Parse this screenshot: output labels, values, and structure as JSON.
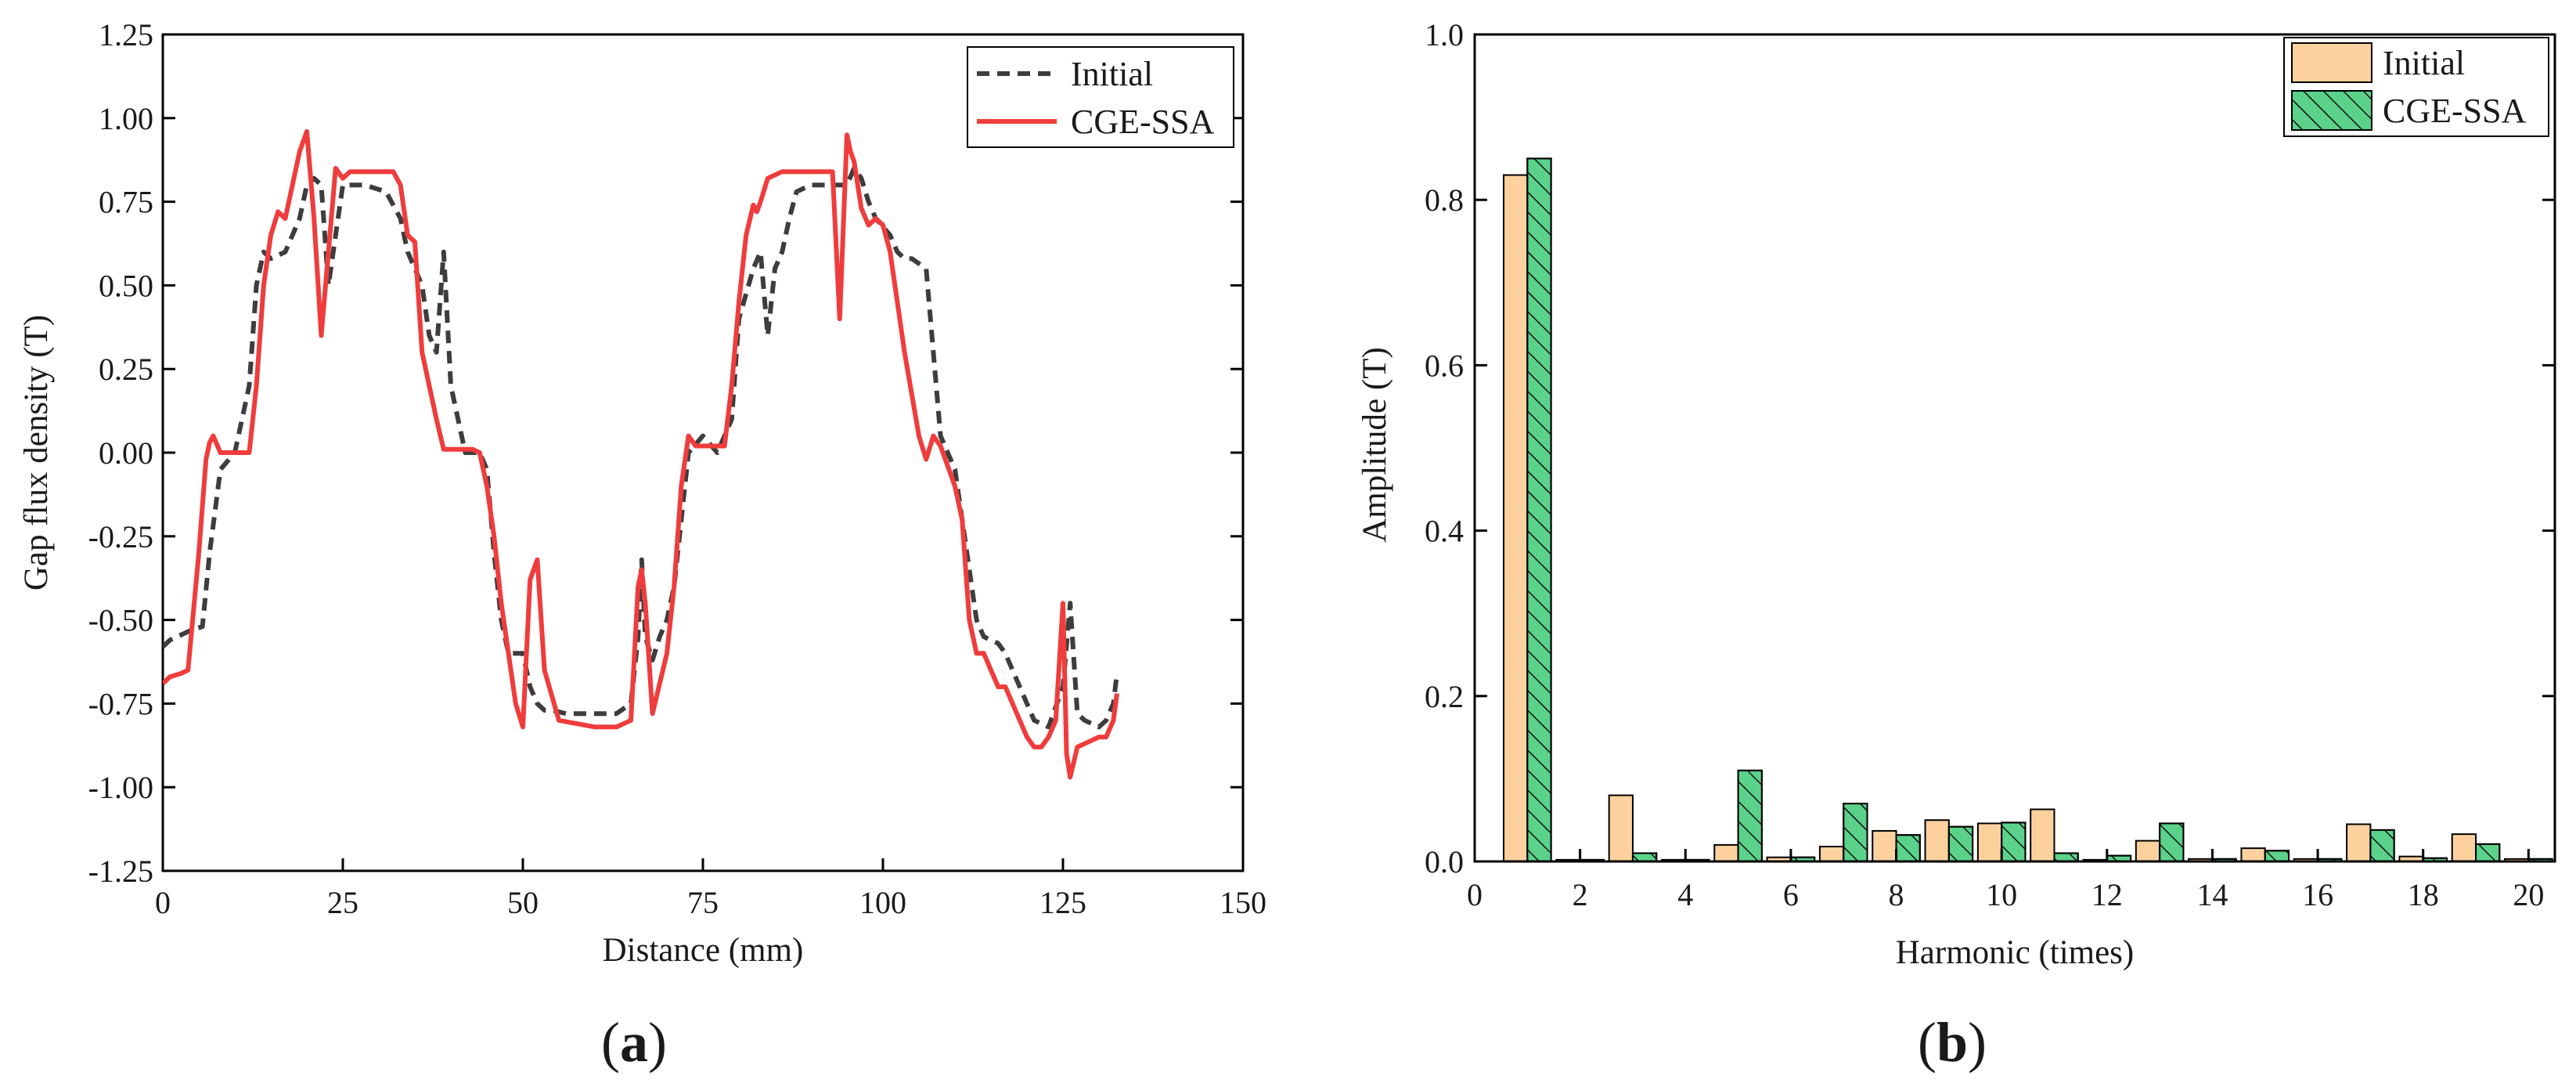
{
  "figure": {
    "panel_a_label": {
      "open": "(",
      "letter": "a",
      "close": ")"
    },
    "panel_b_label": {
      "open": "(",
      "letter": "b",
      "close": ")"
    }
  },
  "colors": {
    "initial_line": "#3d3d3d",
    "cge_line": "#f03c3c",
    "initial_bar": "#fdd19d",
    "cge_bar": "#5bd28a",
    "axis": "#000000"
  },
  "chart_data": [
    {
      "type": "line",
      "xlabel": "Distance (mm)",
      "ylabel": "Gap flux density (T)",
      "xlim": [
        0,
        150
      ],
      "ylim": [
        -1.25,
        1.25
      ],
      "xticks": [
        0,
        25,
        50,
        75,
        100,
        125,
        150
      ],
      "xtick_labels": [
        "0",
        "25",
        "50",
        "75",
        "100",
        "125",
        "150"
      ],
      "yticks": [
        -1.25,
        -1.0,
        -0.75,
        -0.5,
        -0.25,
        0,
        0.25,
        0.5,
        0.75,
        1.0,
        1.25
      ],
      "ytick_labels": [
        "-1.25",
        "-1.00",
        "-0.75",
        "-0.50",
        "-0.25",
        "0.00",
        "0.25",
        "0.50",
        "0.75",
        "1.00",
        "1.25"
      ],
      "legend_position": "top-right",
      "series": [
        {
          "name": "Initial",
          "style": "dashed",
          "x": [
            0,
            1,
            2,
            4,
            5.5,
            6.5,
            8,
            10,
            12,
            13,
            14,
            15,
            17,
            19,
            20,
            21,
            22,
            23,
            25,
            28,
            31,
            33,
            34,
            35,
            36,
            37,
            38,
            38.5,
            39,
            40,
            42,
            44,
            45,
            46,
            47,
            48,
            50,
            51,
            52,
            53,
            54,
            56,
            60,
            63,
            65,
            66,
            66.5,
            67,
            68,
            69,
            70,
            71,
            72,
            73,
            75,
            77,
            79,
            80,
            82,
            83,
            84,
            85,
            86,
            87,
            88,
            90,
            93,
            95,
            96,
            97,
            98,
            99,
            101,
            102,
            103,
            104,
            106,
            107,
            108,
            109,
            110,
            111,
            112,
            113,
            114,
            116,
            117,
            118,
            119,
            120,
            121,
            123,
            125,
            126,
            127,
            128,
            130,
            131,
            132,
            132.5
          ],
          "y": [
            -0.58,
            -0.56,
            -0.55,
            -0.53,
            -0.52,
            -0.3,
            -0.05,
            0.0,
            0.2,
            0.5,
            0.6,
            0.58,
            0.6,
            0.7,
            0.8,
            0.82,
            0.8,
            0.5,
            0.8,
            0.8,
            0.78,
            0.7,
            0.6,
            0.55,
            0.5,
            0.35,
            0.3,
            0.45,
            0.6,
            0.2,
            0.0,
            0.0,
            -0.05,
            -0.3,
            -0.5,
            -0.6,
            -0.6,
            -0.7,
            -0.75,
            -0.77,
            -0.77,
            -0.78,
            -0.78,
            -0.78,
            -0.75,
            -0.55,
            -0.32,
            -0.55,
            -0.62,
            -0.55,
            -0.5,
            -0.4,
            -0.2,
            0.0,
            0.05,
            0.0,
            0.1,
            0.4,
            0.55,
            0.6,
            0.35,
            0.55,
            0.6,
            0.7,
            0.78,
            0.8,
            0.8,
            0.8,
            0.85,
            0.82,
            0.75,
            0.7,
            0.65,
            0.6,
            0.58,
            0.58,
            0.55,
            0.3,
            0.05,
            0.0,
            -0.05,
            -0.2,
            -0.35,
            -0.5,
            -0.55,
            -0.57,
            -0.6,
            -0.65,
            -0.7,
            -0.75,
            -0.8,
            -0.82,
            -0.7,
            -0.45,
            -0.78,
            -0.8,
            -0.82,
            -0.8,
            -0.75,
            -0.66
          ]
        },
        {
          "name": "CGE-SSA",
          "style": "solid",
          "x": [
            0,
            1,
            2.5,
            3.5,
            5,
            6,
            6.5,
            7,
            8,
            9,
            10,
            12,
            13,
            14,
            15,
            16,
            17,
            18,
            19,
            20,
            21,
            22,
            23,
            24,
            25,
            26,
            28,
            30,
            32,
            33,
            34,
            35,
            36,
            37,
            38,
            39,
            40,
            42,
            43,
            44,
            45,
            46,
            47,
            48,
            49,
            50,
            51,
            52,
            53,
            55,
            60,
            63,
            65,
            66,
            66.5,
            67,
            68,
            70,
            71,
            72,
            73,
            74,
            75,
            78,
            79,
            80,
            81,
            82,
            82.5,
            83,
            84,
            86,
            88,
            90,
            92,
            93,
            94,
            95,
            95.5,
            96,
            97,
            98,
            99,
            100,
            101,
            103,
            105,
            106,
            107,
            108,
            110,
            111,
            112,
            113,
            114,
            115,
            116,
            117,
            118,
            119,
            120,
            121,
            122,
            123,
            124,
            125,
            125.5,
            126,
            127,
            128,
            130,
            131,
            132,
            132.5
          ],
          "y": [
            -0.69,
            -0.67,
            -0.66,
            -0.65,
            -0.3,
            -0.02,
            0.03,
            0.05,
            0.0,
            0.0,
            0.0,
            0.0,
            0.2,
            0.5,
            0.65,
            0.72,
            0.7,
            0.8,
            0.9,
            0.96,
            0.7,
            0.35,
            0.6,
            0.85,
            0.82,
            0.84,
            0.84,
            0.84,
            0.84,
            0.8,
            0.65,
            0.63,
            0.3,
            0.2,
            0.1,
            0.01,
            0.01,
            0.01,
            0.01,
            0.0,
            -0.1,
            -0.25,
            -0.45,
            -0.6,
            -0.75,
            -0.82,
            -0.38,
            -0.32,
            -0.65,
            -0.8,
            -0.82,
            -0.82,
            -0.8,
            -0.4,
            -0.35,
            -0.45,
            -0.78,
            -0.6,
            -0.4,
            -0.1,
            0.05,
            0.02,
            0.02,
            0.02,
            0.2,
            0.45,
            0.65,
            0.74,
            0.72,
            0.75,
            0.82,
            0.84,
            0.84,
            0.84,
            0.84,
            0.84,
            0.4,
            0.95,
            0.9,
            0.87,
            0.73,
            0.68,
            0.7,
            0.68,
            0.6,
            0.3,
            0.05,
            -0.02,
            0.05,
            0.02,
            -0.1,
            -0.2,
            -0.5,
            -0.6,
            -0.6,
            -0.65,
            -0.7,
            -0.7,
            -0.75,
            -0.8,
            -0.85,
            -0.88,
            -0.88,
            -0.85,
            -0.8,
            -0.45,
            -0.9,
            -0.97,
            -0.88,
            -0.87,
            -0.85,
            -0.85,
            -0.8,
            -0.72
          ]
        }
      ]
    },
    {
      "type": "bar",
      "xlabel": "Harmonic (times)",
      "ylabel": "Amplitude (T)",
      "xlim": [
        0,
        20.5
      ],
      "ylim": [
        0,
        1.0
      ],
      "xticks": [
        0,
        2,
        4,
        6,
        8,
        10,
        12,
        14,
        16,
        18,
        20
      ],
      "xtick_labels": [
        "0",
        "2",
        "4",
        "6",
        "8",
        "10",
        "12",
        "14",
        "16",
        "18",
        "20"
      ],
      "yticks": [
        0,
        0.2,
        0.4,
        0.6,
        0.8,
        1.0
      ],
      "ytick_labels": [
        "0.0",
        "0.2",
        "0.4",
        "0.6",
        "0.8",
        "1.0"
      ],
      "legend_position": "top-right",
      "categories": [
        1,
        2,
        3,
        4,
        5,
        6,
        7,
        8,
        9,
        10,
        11,
        12,
        13,
        14,
        15,
        16,
        17,
        18,
        19,
        20
      ],
      "series": [
        {
          "name": "Initial",
          "pattern": "solid",
          "values": [
            0.83,
            0.002,
            0.08,
            0.002,
            0.02,
            0.005,
            0.018,
            0.037,
            0.05,
            0.046,
            0.063,
            0.002,
            0.025,
            0.003,
            0.016,
            0.003,
            0.045,
            0.006,
            0.033,
            0.003
          ]
        },
        {
          "name": "CGE-SSA",
          "pattern": "hatched",
          "values": [
            0.85,
            0.002,
            0.01,
            0.002,
            0.11,
            0.005,
            0.07,
            0.032,
            0.042,
            0.047,
            0.01,
            0.007,
            0.046,
            0.003,
            0.013,
            0.003,
            0.038,
            0.004,
            0.021,
            0.003
          ]
        }
      ]
    }
  ]
}
